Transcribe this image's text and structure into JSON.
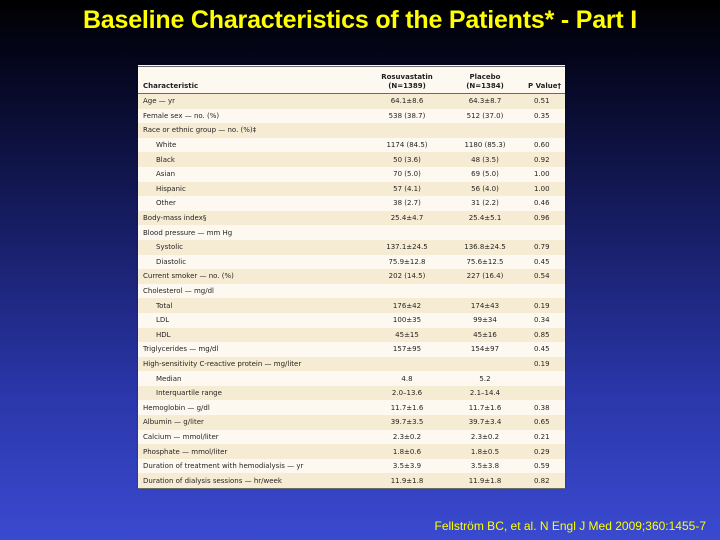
{
  "slide": {
    "title": "Baseline Characteristics of the Patients* - Part I",
    "citation": "Fellström BC, et al. N Engl J Med 2009;360:1455-7"
  },
  "table": {
    "headers": {
      "characteristic": "Characteristic",
      "rosuvastatin": "Rosuvastatin",
      "rosuvastatin_n": "(N=1389)",
      "placebo": "Placebo",
      "placebo_n": "(N=1384)",
      "pvalue": "P Value†"
    },
    "rows": [
      {
        "label": "Age — yr",
        "ros": "64.1±8.6",
        "pla": "64.3±8.7",
        "p": "0.51",
        "sub": false
      },
      {
        "label": "Female sex — no. (%)",
        "ros": "538 (38.7)",
        "pla": "512 (37.0)",
        "p": "0.35",
        "sub": false
      },
      {
        "label": "Race or ethnic group — no. (%)‡",
        "ros": "",
        "pla": "",
        "p": "",
        "sub": false
      },
      {
        "label": "White",
        "ros": "1174 (84.5)",
        "pla": "1180 (85.3)",
        "p": "0.60",
        "sub": true
      },
      {
        "label": "Black",
        "ros": "50 (3.6)",
        "pla": "48 (3.5)",
        "p": "0.92",
        "sub": true
      },
      {
        "label": "Asian",
        "ros": "70 (5.0)",
        "pla": "69 (5.0)",
        "p": "1.00",
        "sub": true
      },
      {
        "label": "Hispanic",
        "ros": "57 (4.1)",
        "pla": "56 (4.0)",
        "p": "1.00",
        "sub": true
      },
      {
        "label": "Other",
        "ros": "38 (2.7)",
        "pla": "31 (2.2)",
        "p": "0.46",
        "sub": true
      },
      {
        "label": "Body-mass index§",
        "ros": "25.4±4.7",
        "pla": "25.4±5.1",
        "p": "0.96",
        "sub": false
      },
      {
        "label": "Blood pressure — mm Hg",
        "ros": "",
        "pla": "",
        "p": "",
        "sub": false
      },
      {
        "label": "Systolic",
        "ros": "137.1±24.5",
        "pla": "136.8±24.5",
        "p": "0.79",
        "sub": true
      },
      {
        "label": "Diastolic",
        "ros": "75.9±12.8",
        "pla": "75.6±12.5",
        "p": "0.45",
        "sub": true
      },
      {
        "label": "Current smoker — no. (%)",
        "ros": "202 (14.5)",
        "pla": "227 (16.4)",
        "p": "0.54",
        "sub": false
      },
      {
        "label": "Cholesterol — mg/dl",
        "ros": "",
        "pla": "",
        "p": "",
        "sub": false
      },
      {
        "label": "Total",
        "ros": "176±42",
        "pla": "174±43",
        "p": "0.19",
        "sub": true
      },
      {
        "label": "LDL",
        "ros": "100±35",
        "pla": "99±34",
        "p": "0.34",
        "sub": true
      },
      {
        "label": "HDL",
        "ros": "45±15",
        "pla": "45±16",
        "p": "0.85",
        "sub": true
      },
      {
        "label": "Triglycerides — mg/dl",
        "ros": "157±95",
        "pla": "154±97",
        "p": "0.45",
        "sub": false
      },
      {
        "label": "High-sensitivity C-reactive protein — mg/liter",
        "ros": "",
        "pla": "",
        "p": "0.19",
        "sub": false
      },
      {
        "label": "Median",
        "ros": "4.8",
        "pla": "5.2",
        "p": "",
        "sub": true
      },
      {
        "label": "Interquartile range",
        "ros": "2.0–13.6",
        "pla": "2.1–14.4",
        "p": "",
        "sub": true
      },
      {
        "label": "Hemoglobin — g/dl",
        "ros": "11.7±1.6",
        "pla": "11.7±1.6",
        "p": "0.38",
        "sub": false
      },
      {
        "label": "Albumin — g/liter",
        "ros": "39.7±3.5",
        "pla": "39.7±3.4",
        "p": "0.65",
        "sub": false
      },
      {
        "label": "Calcium — mmol/liter",
        "ros": "2.3±0.2",
        "pla": "2.3±0.2",
        "p": "0.21",
        "sub": false
      },
      {
        "label": "Phosphate — mmol/liter",
        "ros": "1.8±0.6",
        "pla": "1.8±0.5",
        "p": "0.29",
        "sub": false
      },
      {
        "label": "Duration of treatment with hemodialysis — yr",
        "ros": "3.5±3.9",
        "pla": "3.5±3.8",
        "p": "0.59",
        "sub": false
      },
      {
        "label": "Duration of dialysis sessions — hr/week",
        "ros": "11.9±1.8",
        "pla": "11.9±1.8",
        "p": "0.82",
        "sub": false
      }
    ]
  }
}
